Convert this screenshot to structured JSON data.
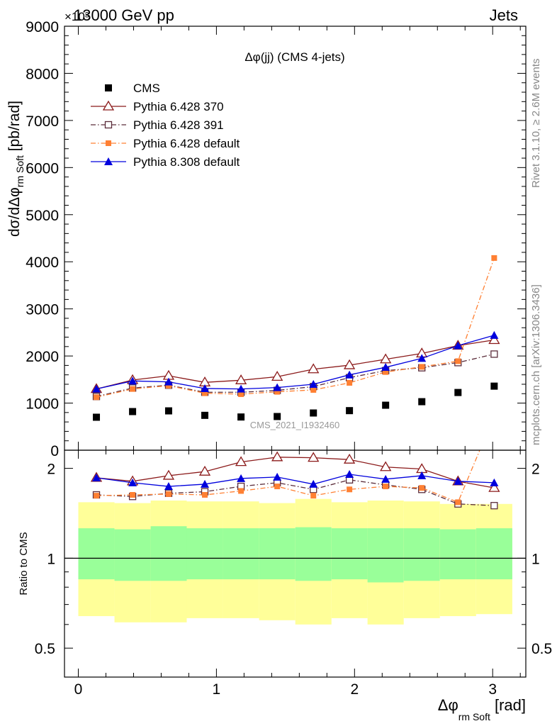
{
  "header": {
    "energy_label": "13000 GeV pp",
    "process_label": "Jets",
    "exponent_label": "×10³"
  },
  "side_labels": {
    "rivet": "Rivet 3.1.10, ≥ 2.6M events",
    "mcplots": "mcplots.cern.ch [arXiv:1306.3436]"
  },
  "watermark": "CMS_2021_I1932460",
  "colors": {
    "cms": "#000000",
    "p370": "#8b1a1a",
    "p391": "#5b2c3a",
    "p6def": "#ff8033",
    "p8def": "#0000dd",
    "band_outer": "#ffff99",
    "band_inner": "#99ff99"
  },
  "chart_data": [
    {
      "type": "scatter",
      "title": "Δφ(jj) (CMS 4-jets)",
      "ylabel": "dσ/dΔφrm Soft [pb/rad]",
      "ylabel_parts": {
        "main": "dσ/dΔφ",
        "sub": "rm Soft",
        "unit": " [pb/rad]"
      },
      "xlim": [
        -0.1,
        3.24
      ],
      "ylim": [
        0,
        9000
      ],
      "yticks": [
        0,
        1000,
        2000,
        3000,
        4000,
        5000,
        6000,
        7000,
        8000,
        9000
      ],
      "x": [
        0.131,
        0.393,
        0.654,
        0.916,
        1.178,
        1.44,
        1.702,
        1.963,
        2.225,
        2.487,
        2.749,
        3.011
      ],
      "legend_position": "top-left",
      "series": [
        {
          "name": "CMS",
          "key": "cms",
          "marker": "square",
          "dash": "none",
          "values": [
            700,
            820,
            835,
            740,
            705,
            715,
            790,
            840,
            955,
            1030,
            1225,
            1360
          ]
        },
        {
          "name": "Pythia 6.428 370",
          "key": "p370",
          "marker": "triangle-open",
          "dash": "solid",
          "values": [
            1300,
            1490,
            1580,
            1440,
            1485,
            1560,
            1720,
            1805,
            1930,
            2055,
            2220,
            2340
          ]
        },
        {
          "name": "Pythia 6.428 391",
          "key": "p391",
          "marker": "square-open",
          "dash": "dashdot",
          "values": [
            1140,
            1320,
            1380,
            1230,
            1230,
            1270,
            1350,
            1540,
            1690,
            1750,
            1860,
            2040
          ]
        },
        {
          "name": "Pythia 6.428 default",
          "key": "p6def",
          "marker": "square-small",
          "dash": "dashdot",
          "values": [
            1125,
            1300,
            1370,
            1210,
            1190,
            1240,
            1280,
            1430,
            1660,
            1770,
            1890,
            4080
          ]
        },
        {
          "name": "Pythia 8.308 default",
          "key": "p8def",
          "marker": "triangle",
          "dash": "solid",
          "values": [
            1300,
            1470,
            1450,
            1310,
            1300,
            1330,
            1400,
            1600,
            1760,
            1950,
            2220,
            2440
          ]
        }
      ]
    },
    {
      "type": "scatter",
      "ylabel": "Ratio to CMS",
      "xlabel": "Δφrm Soft [rad]",
      "xlabel_parts": {
        "main": "Δφ",
        "sub": "rm Soft",
        "unit": " [rad]"
      },
      "xlim": [
        -0.1,
        3.24
      ],
      "ylim": [
        0.4,
        2.3
      ],
      "xticks": [
        0,
        1,
        2,
        3
      ],
      "yticks": [
        0.5,
        1,
        2
      ],
      "ytick_labels_left": [
        "0.5",
        "1",
        "2"
      ],
      "ytick_labels_right": [
        "0.5",
        "1",
        "2"
      ],
      "x": [
        0.131,
        0.393,
        0.654,
        0.916,
        1.178,
        1.44,
        1.702,
        1.963,
        2.225,
        2.487,
        2.749,
        3.011
      ],
      "bin_edges": [
        0.0,
        0.262,
        0.524,
        0.785,
        1.047,
        1.309,
        1.571,
        1.833,
        2.094,
        2.356,
        2.618,
        2.88,
        3.142
      ],
      "band_outer": {
        "lo": [
          0.64,
          0.61,
          0.61,
          0.63,
          0.63,
          0.62,
          0.6,
          0.63,
          0.6,
          0.63,
          0.64,
          0.65
        ],
        "hi": [
          1.54,
          1.53,
          1.56,
          1.55,
          1.55,
          1.53,
          1.58,
          1.54,
          1.56,
          1.55,
          1.52,
          1.52
        ]
      },
      "band_inner": {
        "lo": [
          0.85,
          0.84,
          0.84,
          0.85,
          0.85,
          0.85,
          0.84,
          0.85,
          0.83,
          0.84,
          0.85,
          0.85
        ],
        "hi": [
          1.26,
          1.25,
          1.28,
          1.26,
          1.26,
          1.26,
          1.27,
          1.26,
          1.26,
          1.26,
          1.25,
          1.26
        ]
      },
      "reference_line": 1,
      "series": [
        {
          "name": "Pythia 6.428 370",
          "key": "p370",
          "marker": "triangle-open",
          "dash": "solid",
          "values": [
            1.86,
            1.81,
            1.89,
            1.95,
            2.1,
            2.18,
            2.17,
            2.14,
            2.02,
            1.99,
            1.81,
            1.72
          ]
        },
        {
          "name": "Pythia 6.428 391",
          "key": "p391",
          "marker": "square-open",
          "dash": "dashdot",
          "values": [
            1.63,
            1.61,
            1.65,
            1.67,
            1.74,
            1.79,
            1.7,
            1.83,
            1.76,
            1.7,
            1.52,
            1.5
          ]
        },
        {
          "name": "Pythia 6.428 default",
          "key": "p6def",
          "marker": "square-small",
          "dash": "dashdot",
          "values": [
            1.62,
            1.63,
            1.64,
            1.63,
            1.68,
            1.74,
            1.62,
            1.7,
            1.74,
            1.72,
            1.54,
            3.0
          ]
        },
        {
          "name": "Pythia 8.308 default",
          "key": "p8def",
          "marker": "triangle",
          "dash": "solid",
          "values": [
            1.86,
            1.79,
            1.74,
            1.77,
            1.85,
            1.87,
            1.77,
            1.91,
            1.84,
            1.89,
            1.81,
            1.79
          ]
        }
      ]
    }
  ]
}
